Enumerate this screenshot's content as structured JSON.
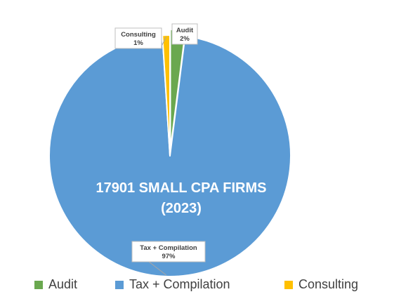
{
  "chart_data": {
    "type": "pie",
    "title": "17901 SMALL CPA FIRMS\n(2023)",
    "categories": [
      "Audit",
      "Tax + Compilation",
      "Consulting"
    ],
    "values": [
      2,
      97,
      1
    ],
    "value_unit": "%",
    "data_labels": [
      {
        "name": "Audit",
        "value": "2%"
      },
      {
        "name": "Tax + Compilation",
        "value": "97%"
      },
      {
        "name": "Consulting",
        "value": "1%"
      }
    ],
    "colors": [
      "#6aa84f",
      "#5b9bd5",
      "#ffc000"
    ],
    "legend_position": "bottom",
    "grid": false
  }
}
